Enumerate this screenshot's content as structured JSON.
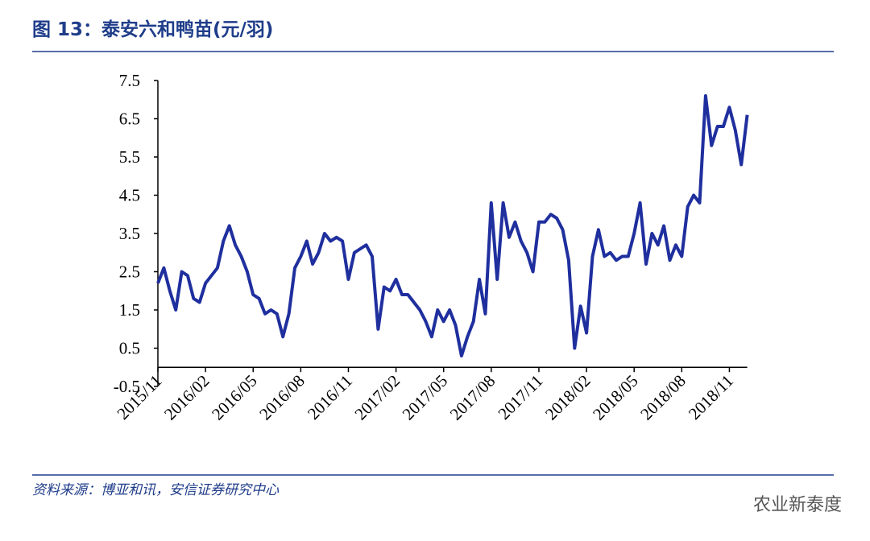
{
  "chart_data": {
    "type": "line",
    "title": "图 13：泰安六和鸭苗(元/羽)",
    "source": "资料来源：博亚和讯，安信证券研究中心",
    "watermark": "农业新泰度",
    "categories": [
      "2015/11",
      null,
      null,
      null,
      null,
      null,
      null,
      null,
      "2016/02",
      null,
      null,
      null,
      null,
      null,
      null,
      null,
      "2016/05",
      null,
      null,
      null,
      null,
      null,
      null,
      null,
      "2016/08",
      null,
      null,
      null,
      null,
      null,
      null,
      null,
      "2016/11",
      null,
      null,
      null,
      null,
      null,
      null,
      null,
      "2017/02",
      null,
      null,
      null,
      null,
      null,
      null,
      null,
      "2017/05",
      null,
      null,
      null,
      null,
      null,
      null,
      null,
      "2017/08",
      null,
      null,
      null,
      null,
      null,
      null,
      null,
      "2017/11",
      null,
      null,
      null,
      null,
      null,
      null,
      null,
      "2018/02",
      null,
      null,
      null,
      null,
      null,
      null,
      null,
      "2018/05",
      null,
      null,
      null,
      null,
      null,
      null,
      null,
      "2018/08",
      null,
      null,
      null,
      null,
      null,
      null,
      null,
      "2018/11",
      null,
      null,
      null
    ],
    "series": [
      {
        "color": "#1f2f9e",
        "values": [
          2.2,
          2.6,
          2.0,
          1.5,
          2.5,
          2.4,
          1.8,
          1.7,
          2.2,
          2.4,
          2.6,
          3.3,
          3.7,
          3.2,
          2.9,
          2.5,
          1.9,
          1.8,
          1.4,
          1.5,
          1.4,
          0.8,
          1.4,
          2.6,
          2.9,
          3.3,
          2.7,
          3.0,
          3.5,
          3.3,
          3.4,
          3.3,
          2.3,
          3.0,
          3.1,
          3.2,
          2.9,
          1.0,
          2.1,
          2.0,
          2.3,
          1.9,
          1.9,
          1.7,
          1.5,
          1.2,
          0.8,
          1.5,
          1.2,
          1.5,
          1.1,
          0.3,
          0.8,
          1.2,
          2.3,
          1.4,
          4.3,
          2.3,
          4.3,
          3.4,
          3.8,
          3.3,
          3.0,
          2.5,
          3.8,
          3.8,
          4.0,
          3.9,
          3.6,
          2.8,
          0.5,
          1.6,
          0.9,
          2.9,
          3.6,
          2.9,
          3.0,
          2.8,
          2.9,
          2.9,
          3.5,
          4.3,
          2.7,
          3.5,
          3.2,
          3.7,
          2.8,
          3.2,
          2.9,
          4.2,
          4.5,
          4.3,
          7.1,
          5.8,
          6.3,
          6.3,
          6.8,
          6.2,
          5.3,
          6.6
        ]
      }
    ],
    "ylim": [
      -0.5,
      7.5
    ],
    "yticks": [
      -0.5,
      0.5,
      1.5,
      2.5,
      3.5,
      4.5,
      5.5,
      6.5,
      7.5
    ]
  }
}
